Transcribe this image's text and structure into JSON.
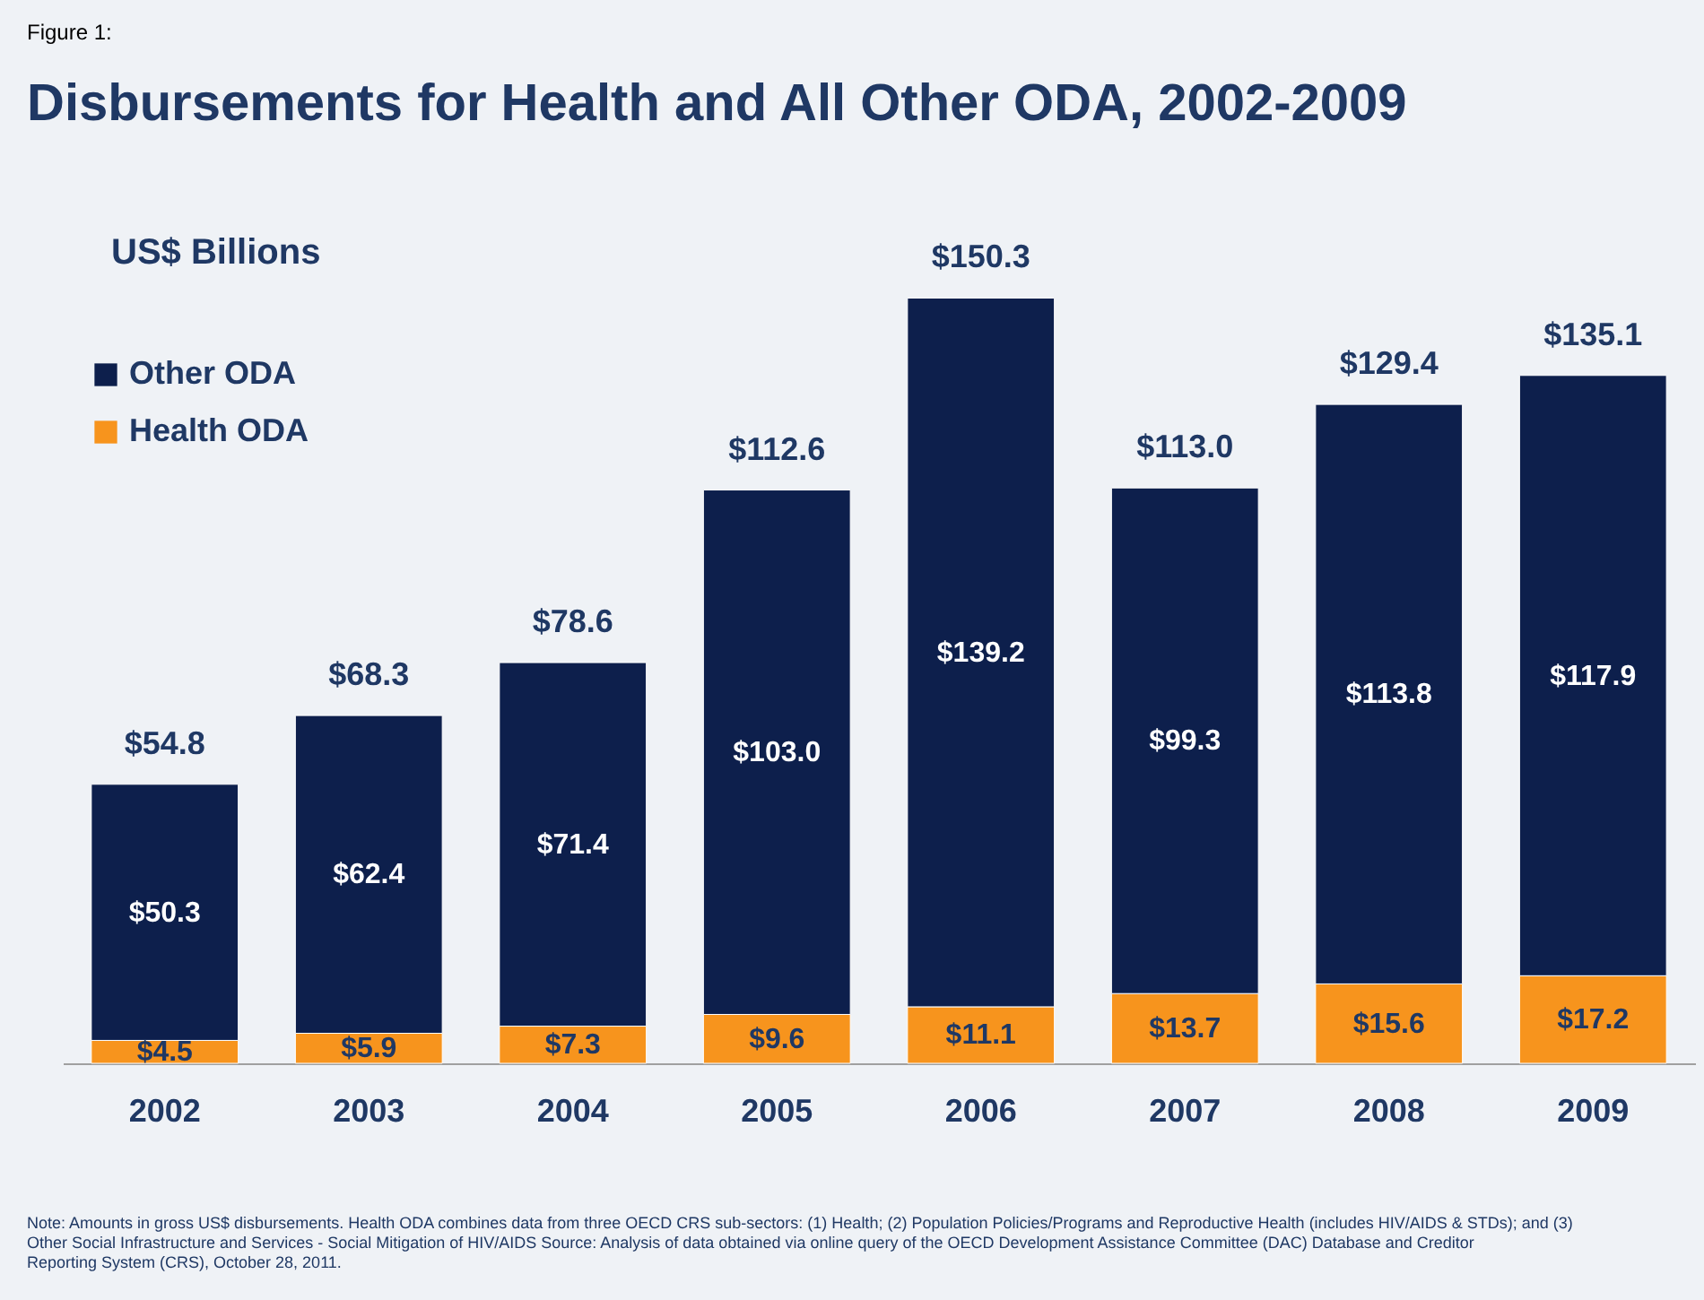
{
  "chart_data": {
    "type": "bar",
    "stacked": true,
    "title": "Disbursements for Health and All Other ODA, 2002-2009",
    "ylabel": "US$ Billions",
    "categories": [
      "2002",
      "2003",
      "2004",
      "2005",
      "2006",
      "2007",
      "2008",
      "2009"
    ],
    "series": [
      {
        "name": "Health ODA",
        "color": "#f7941d",
        "values": [
          4.5,
          5.9,
          7.3,
          9.6,
          11.1,
          13.7,
          15.6,
          17.2
        ],
        "value_labels": [
          "$4.5",
          "$5.9",
          "$7.3",
          "$9.6",
          "$11.1",
          "$13.7",
          "$15.6",
          "$17.2"
        ]
      },
      {
        "name": "Other ODA",
        "color": "#0d1f4c",
        "values": [
          50.3,
          62.4,
          71.4,
          103.0,
          139.2,
          99.3,
          113.8,
          117.9
        ],
        "value_labels": [
          "$50.3",
          "$62.4",
          "$71.4",
          "$103.0",
          "$139.2",
          "$99.3",
          "$113.8",
          "$117.9"
        ]
      }
    ],
    "totals": [
      "$54.8",
      "$68.3",
      "$78.6",
      "$112.6",
      "$150.3",
      "$113.0",
      "$129.4",
      "$135.1"
    ],
    "legend": "top left",
    "grid": false,
    "annotations": [
      "Figure 1:",
      "Note: Amounts in gross US$ disbursements. Health ODA combines data from three OECD CRS sub-sectors: (1) Health; (2) Population Policies/Programs and Reproductive Health (includes HIV/AIDS & STDs); and (3) Other Social Infrastructure and Services - Social Mitigation of HIV/AIDS Source: Analysis of data obtained via online query of the OECD Development Assistance Committee (DAC) Database and Creditor Reporting System (CRS), October 28, 2011."
    ]
  }
}
